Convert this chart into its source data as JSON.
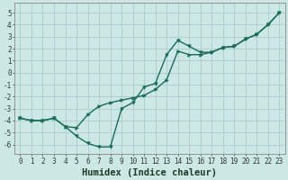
{
  "title": "",
  "xlabel": "Humidex (Indice chaleur)",
  "background_color": "#cce8e4",
  "grid_color": "#aacccc",
  "line_color": "#1a6b5a",
  "xlim": [
    -0.5,
    23.5
  ],
  "ylim": [
    -6.8,
    5.8
  ],
  "xticks": [
    0,
    1,
    2,
    3,
    4,
    5,
    6,
    7,
    8,
    9,
    10,
    11,
    12,
    13,
    14,
    15,
    16,
    17,
    18,
    19,
    20,
    21,
    22,
    23
  ],
  "yticks": [
    -6,
    -5,
    -4,
    -3,
    -2,
    -1,
    0,
    1,
    2,
    3,
    4,
    5
  ],
  "line1_x": [
    0,
    1,
    2,
    3,
    4,
    5,
    6,
    7,
    8,
    9,
    10,
    11,
    12,
    13,
    14,
    15,
    16,
    17,
    18,
    19,
    20,
    21,
    22,
    23
  ],
  "line1_y": [
    -3.8,
    -4.0,
    -4.0,
    -3.8,
    -4.5,
    -5.3,
    -5.9,
    -6.2,
    -6.2,
    -3.0,
    -2.5,
    -1.2,
    -0.9,
    1.5,
    2.7,
    2.2,
    1.7,
    1.7,
    2.1,
    2.2,
    2.8,
    3.2,
    4.0,
    5.0
  ],
  "line2_x": [
    0,
    1,
    2,
    3,
    4,
    5,
    6,
    7,
    8,
    9,
    10,
    11,
    12,
    13,
    14,
    15,
    16,
    17,
    18,
    19,
    20,
    21,
    22,
    23
  ],
  "line2_y": [
    -3.8,
    -4.0,
    -4.0,
    -3.8,
    -4.5,
    -4.6,
    -3.5,
    -2.8,
    -2.5,
    -2.3,
    -2.1,
    -1.9,
    -1.4,
    -0.6,
    1.8,
    1.5,
    1.5,
    1.7,
    2.1,
    2.2,
    2.8,
    3.2,
    4.0,
    5.0
  ],
  "tick_fontsize": 5.5,
  "xlabel_fontsize": 7.5,
  "marker_size": 2.5,
  "linewidth": 1.0
}
